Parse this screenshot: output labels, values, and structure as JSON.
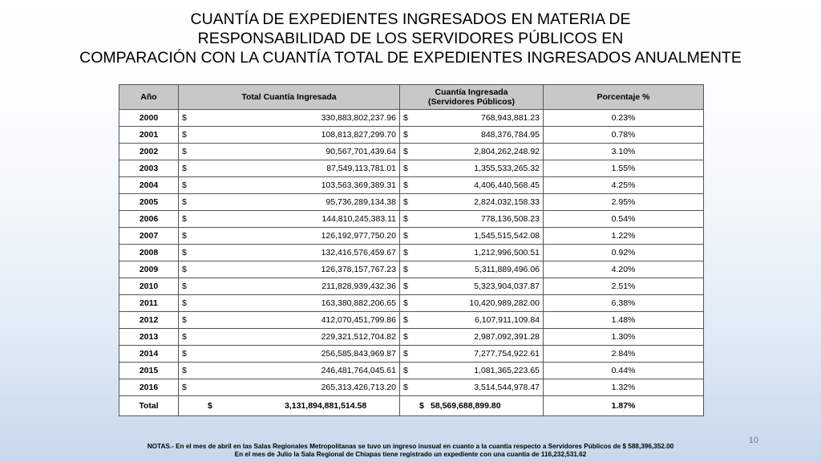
{
  "title": {
    "line1": "CUANTÍA DE EXPEDIENTES INGRESADOS EN MATERIA DE",
    "line2": "RESPONSABILIDAD DE LOS SERVIDORES PÚBLICOS EN",
    "line3": "COMPARACIÓN CON LA CUANTÍA TOTAL DE EXPEDIENTES INGRESADOS ANUALMENTE"
  },
  "table": {
    "headers": {
      "year": "Año",
      "total": "Total Cuantía Ingresada",
      "servers_line1": "Cuantía Ingresada",
      "servers_line2": "(Servidores Públicos)",
      "percent": "Porcentaje %"
    },
    "currency_symbol": "$",
    "rows": [
      {
        "year": "2000",
        "total": "330,883,802,237.96",
        "servers": "768,943,881.23",
        "percent": "0.23%"
      },
      {
        "year": "2001",
        "total": "108,813,827,299.70",
        "servers": "848,376,784.95",
        "percent": "0.78%"
      },
      {
        "year": "2002",
        "total": "90,567,701,439.64",
        "servers": "2,804,262,248.92",
        "percent": "3.10%"
      },
      {
        "year": "2003",
        "total": "87,549,113,781.01",
        "servers": "1,355,533,265.32",
        "percent": "1.55%"
      },
      {
        "year": "2004",
        "total": "103,563,369,389.31",
        "servers": "4,406,440,568.45",
        "percent": "4.25%"
      },
      {
        "year": "2005",
        "total": "95,736,289,134.38",
        "servers": "2,824,032,158.33",
        "percent": "2.95%"
      },
      {
        "year": "2006",
        "total": "144,810,245,383.11",
        "servers": "778,136,508.23",
        "percent": "0.54%"
      },
      {
        "year": "2007",
        "total": "126,192,977,750.20",
        "servers": "1,545,515,542.08",
        "percent": "1.22%"
      },
      {
        "year": "2008",
        "total": "132,416,576,459.67",
        "servers": "1,212,996,500.51",
        "percent": "0.92%"
      },
      {
        "year": "2009",
        "total": "126,378,157,767.23",
        "servers": "5,311,889,496.06",
        "percent": "4.20%"
      },
      {
        "year": "2010",
        "total": "211,828,939,432.36",
        "servers": "5,323,904,037.87",
        "percent": "2.51%"
      },
      {
        "year": "2011",
        "total": "163,380,882,206.65",
        "servers": "10,420,989,282.00",
        "percent": "6.38%"
      },
      {
        "year": "2012",
        "total": "412,070,451,799.86",
        "servers": "6,107,911,109.84",
        "percent": "1.48%"
      },
      {
        "year": "2013",
        "total": "229,321,512,704.82",
        "servers": "2,987,092,391.28",
        "percent": "1.30%"
      },
      {
        "year": "2014",
        "total": "256,585,843,969.87",
        "servers": "7,277,754,922.61",
        "percent": "2.84%"
      },
      {
        "year": "2015",
        "total": "246,481,764,045.61",
        "servers": "1,081,365,223.65",
        "percent": "0.44%"
      },
      {
        "year": "2016",
        "total": "265,313,426,713.20",
        "servers": "3,514,544,978.47",
        "percent": "1.32%"
      }
    ],
    "total_row": {
      "label": "Total",
      "total": "3,131,894,881,514.58",
      "servers": "58,569,688,899.80",
      "percent": "1.87%"
    }
  },
  "page_number": "10",
  "notes": {
    "line1": "NOTAS.- En el mes de abril en las Salas Regionales Metropolitanas se tuvo un ingreso inusual en cuanto a la cuantia respecto a Servidores Públicos de $ 588,396,352.00",
    "line2": "En el mes de Julio la Sala Regional de Chiapas tiene registrado un expediente con una cuantía de 116,232,531.62"
  }
}
